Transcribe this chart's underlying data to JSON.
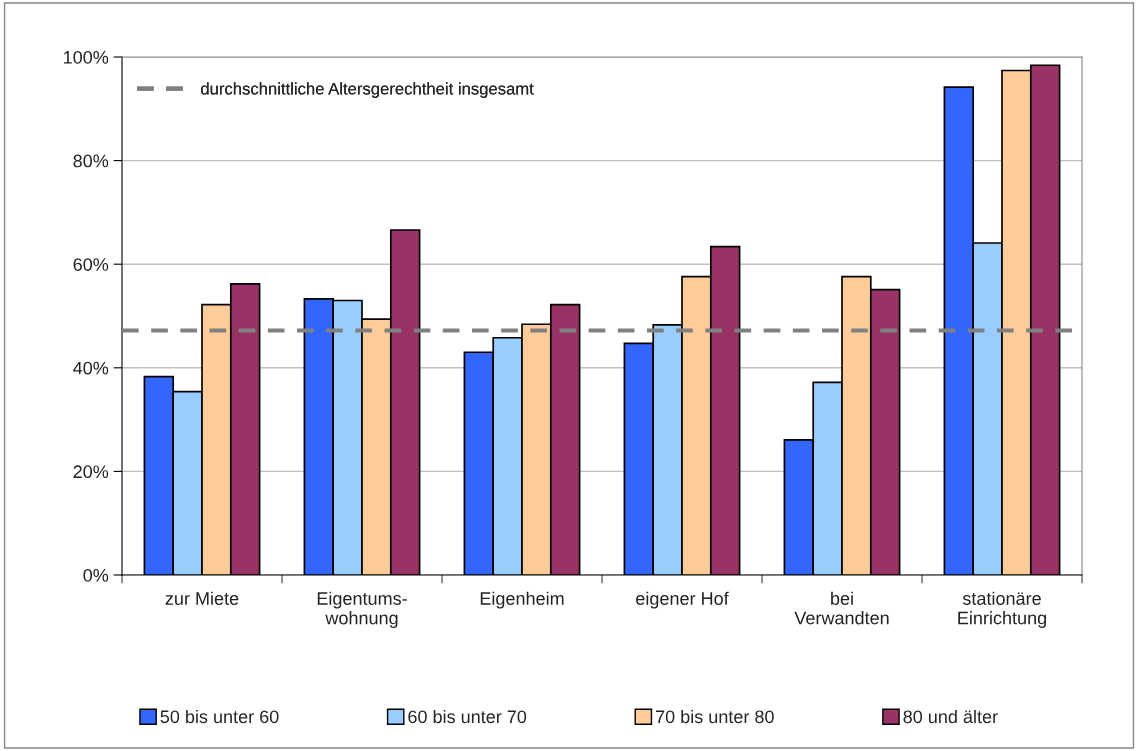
{
  "chart_data": {
    "type": "bar",
    "categories": [
      "zur Miete",
      "Eigentums-\nwohnung",
      "Eigenheim",
      "eigener Hof",
      "bei\nVerwandten",
      "stationäre\nEinrichtung"
    ],
    "series": [
      {
        "name": "50 bis unter 60",
        "color": "#3366ff",
        "values": [
          38.3,
          53.3,
          43.0,
          44.7,
          26.1,
          94.2
        ]
      },
      {
        "name": "60 bis unter 70",
        "color": "#99ccff",
        "values": [
          35.4,
          53.0,
          45.8,
          48.3,
          37.2,
          64.1
        ]
      },
      {
        "name": "70 bis unter 80",
        "color": "#ffcc99",
        "values": [
          52.2,
          49.4,
          48.4,
          57.6,
          57.6,
          97.4
        ]
      },
      {
        "name": "80 und älter",
        "color": "#993366",
        "values": [
          56.2,
          66.6,
          52.2,
          63.4,
          55.1,
          98.4
        ]
      }
    ],
    "ref_lines": [
      {
        "axis": "y",
        "value": 47.2,
        "label": "durchschnittliche Altersgerechtheit insgesamt",
        "color": "#808080",
        "line_style": "dashed"
      }
    ],
    "ylim": [
      0,
      100
    ],
    "yticks": [
      {
        "value": 0,
        "label": "0%"
      },
      {
        "value": 20,
        "label": "20%"
      },
      {
        "value": 40,
        "label": "40%"
      },
      {
        "value": 60,
        "label": "60%"
      },
      {
        "value": 80,
        "label": "80%"
      },
      {
        "value": 100,
        "label": "100%"
      }
    ],
    "grid": "y",
    "legend": "bottom"
  }
}
